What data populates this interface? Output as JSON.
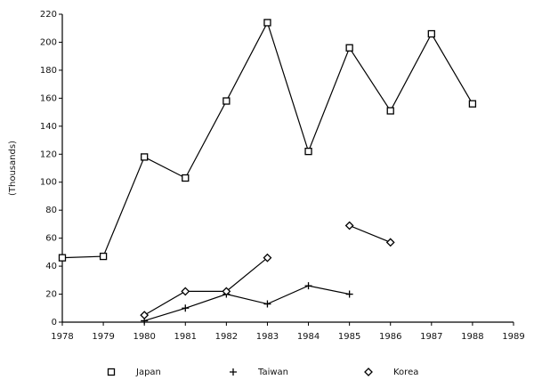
{
  "chart_data": {
    "type": "line",
    "y_label": "(Thousands)",
    "x": [
      1978,
      1979,
      1980,
      1981,
      1982,
      1983,
      1984,
      1985,
      1986,
      1987,
      1988
    ],
    "series": [
      {
        "name": "Japan",
        "color": "#000000",
        "marker": "square",
        "values": [
          46,
          47,
          118,
          103,
          158,
          214,
          122,
          196,
          151,
          206,
          156
        ]
      },
      {
        "name": "Taiwan",
        "color": "#000000",
        "marker": "plus",
        "values": [
          null,
          null,
          1,
          10,
          20,
          13,
          26,
          20,
          null,
          null,
          null
        ]
      },
      {
        "name": "Korea",
        "color": "#000000",
        "marker": "diamond",
        "values": [
          null,
          null,
          5,
          22,
          22,
          46,
          null,
          69,
          57,
          null,
          null
        ]
      }
    ],
    "xlim": [
      1978,
      1989
    ],
    "xticks": [
      1978,
      1979,
      1980,
      1981,
      1982,
      1983,
      1984,
      1985,
      1986,
      1987,
      1988,
      1989
    ],
    "ylim": [
      0,
      220
    ],
    "yticks": [
      0,
      20,
      40,
      60,
      80,
      100,
      120,
      140,
      160,
      180,
      200,
      220
    ],
    "grid": false,
    "legend": "bottom"
  }
}
